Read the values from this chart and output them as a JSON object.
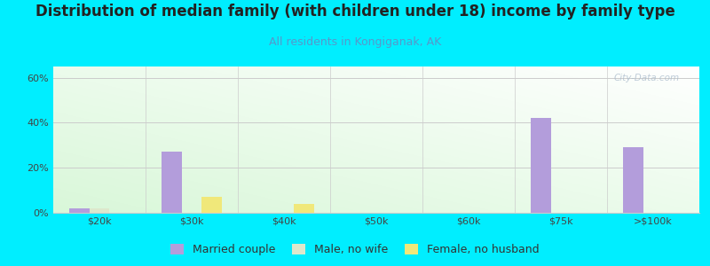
{
  "title": "Distribution of median family (with children under 18) income by family type",
  "subtitle": "All residents in Kongiganak, AK",
  "categories": [
    "$20k",
    "$30k",
    "$40k",
    "$50k",
    "$60k",
    "$75k",
    ">$100k"
  ],
  "married_couple": [
    2.0,
    27.0,
    0.0,
    0.0,
    0.0,
    42.0,
    29.0
  ],
  "male_no_wife": [
    2.0,
    0.0,
    0.0,
    0.0,
    0.0,
    0.0,
    0.0
  ],
  "female_no_husband": [
    0.0,
    7.0,
    4.0,
    0.0,
    0.0,
    0.0,
    0.0
  ],
  "color_married": "#b39ddb",
  "color_male": "#dde8cc",
  "color_female": "#f0e87a",
  "background_outer": "#00eeff",
  "ylim": [
    0,
    65
  ],
  "yticks": [
    0,
    20,
    40,
    60
  ],
  "ytick_labels": [
    "0%",
    "20%",
    "40%",
    "60%"
  ],
  "bar_width": 0.22,
  "legend_labels": [
    "Married couple",
    "Male, no wife",
    "Female, no husband"
  ],
  "watermark": "City-Data.com",
  "title_fontsize": 12,
  "subtitle_fontsize": 9,
  "tick_fontsize": 8,
  "legend_fontsize": 9
}
